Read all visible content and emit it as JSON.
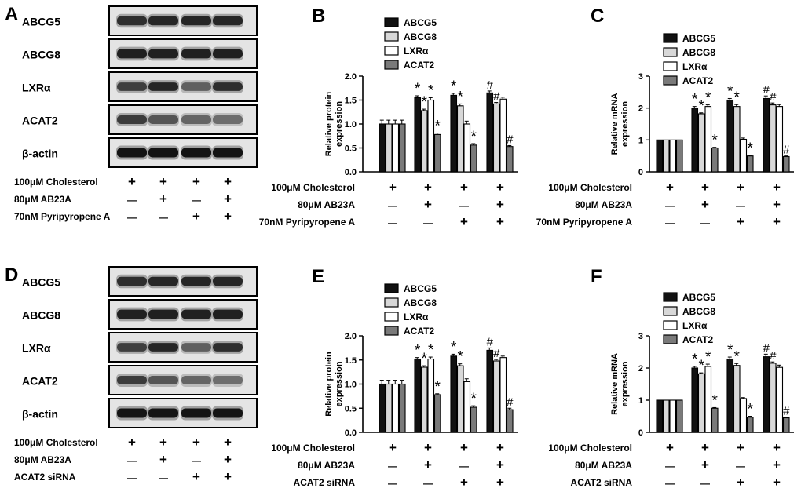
{
  "panels": {
    "A": {
      "letter": "A",
      "blot_labels": [
        "ABCG5",
        "ABCG8",
        "LXRα",
        "ACAT2",
        "β-actin"
      ],
      "conditions": [
        {
          "label": "100μM Cholesterol",
          "signs": [
            "+",
            "+",
            "+",
            "+"
          ]
        },
        {
          "label": "80μM AB23A",
          "signs": [
            "—",
            "+",
            "—",
            "+"
          ]
        },
        {
          "label": "70nM Pyripyropene A",
          "signs": [
            "—",
            "—",
            "+",
            "+"
          ]
        }
      ]
    },
    "D": {
      "letter": "D",
      "blot_labels": [
        "ABCG5",
        "ABCG8",
        "LXRα",
        "ACAT2",
        "β-actin"
      ],
      "conditions": [
        {
          "label": "100μM Cholesterol",
          "signs": [
            "+",
            "+",
            "+",
            "+"
          ]
        },
        {
          "label": "80μM AB23A",
          "signs": [
            "—",
            "+",
            "—",
            "+"
          ]
        },
        {
          "label": "ACAT2 siRNA",
          "signs": [
            "—",
            "—",
            "+",
            "+"
          ]
        }
      ]
    }
  },
  "chart_data": [
    {
      "panel": "B",
      "type": "bar",
      "ylabel": "Relative protein expression",
      "ylim": [
        0,
        2.0
      ],
      "yticks": [
        "0.0",
        "0.5",
        "1.0",
        "1.5",
        "2.0"
      ],
      "legend": [
        "ABCG5",
        "ABCG8",
        "LXRα",
        "ACAT2"
      ],
      "series": [
        {
          "name": "ABCG5",
          "values": [
            1.0,
            1.55,
            1.6,
            1.65
          ],
          "errors": [
            0.08,
            0.04,
            0.04,
            0.04
          ],
          "marks": [
            "",
            "*",
            "*",
            "#"
          ]
        },
        {
          "name": "ABCG8",
          "values": [
            1.0,
            1.28,
            1.38,
            1.42
          ],
          "errors": [
            0.08,
            0.03,
            0.04,
            0.03
          ],
          "marks": [
            "",
            "*",
            "*",
            "#"
          ]
        },
        {
          "name": "LXRα",
          "values": [
            1.0,
            1.5,
            1.0,
            1.52
          ],
          "errors": [
            0.08,
            0.05,
            0.06,
            0.04
          ],
          "marks": [
            "",
            "*",
            "",
            ""
          ]
        },
        {
          "name": "ACAT2",
          "values": [
            1.0,
            0.78,
            0.56,
            0.53
          ],
          "errors": [
            0.08,
            0.03,
            0.03,
            0.02
          ],
          "marks": [
            "",
            "*",
            "*",
            "#"
          ]
        }
      ],
      "conditions": [
        {
          "label": "100μM Cholesterol",
          "signs": [
            "+",
            "+",
            "+",
            "+"
          ]
        },
        {
          "label": "80μM AB23A",
          "signs": [
            "—",
            "+",
            "—",
            "+"
          ]
        },
        {
          "label": "70nM Pyripyropene A",
          "signs": [
            "—",
            "—",
            "+",
            "+"
          ]
        }
      ]
    },
    {
      "panel": "C",
      "type": "bar",
      "ylabel": "Relative mRNA expression",
      "ylim": [
        0,
        3
      ],
      "yticks": [
        "0",
        "1",
        "2",
        "3"
      ],
      "legend": [
        "ABCG5",
        "ABCG8",
        "LXRα",
        "ACAT2"
      ],
      "series": [
        {
          "name": "ABCG5",
          "values": [
            1.0,
            2.0,
            2.25,
            2.3
          ],
          "errors": [
            0.0,
            0.05,
            0.05,
            0.08
          ],
          "marks": [
            "",
            "*",
            "*",
            "#"
          ]
        },
        {
          "name": "ABCG8",
          "values": [
            1.0,
            1.82,
            2.05,
            2.1
          ],
          "errors": [
            0.0,
            0.03,
            0.06,
            0.06
          ],
          "marks": [
            "",
            "*",
            "*",
            "#"
          ]
        },
        {
          "name": "LXRα",
          "values": [
            1.0,
            2.05,
            1.02,
            2.05
          ],
          "errors": [
            0.0,
            0.05,
            0.04,
            0.06
          ],
          "marks": [
            "",
            "*",
            "",
            ""
          ]
        },
        {
          "name": "ACAT2",
          "values": [
            1.0,
            0.75,
            0.5,
            0.48
          ],
          "errors": [
            0.0,
            0.02,
            0.02,
            0.02
          ],
          "marks": [
            "",
            "*",
            "*",
            "#"
          ]
        }
      ],
      "conditions": [
        {
          "label": "100μM Cholesterol",
          "signs": [
            "+",
            "+",
            "+",
            "+"
          ]
        },
        {
          "label": "80μM AB23A",
          "signs": [
            "—",
            "+",
            "—",
            "+"
          ]
        },
        {
          "label": "70nM Pyripyropene A",
          "signs": [
            "—",
            "—",
            "+",
            "+"
          ]
        }
      ]
    },
    {
      "panel": "E",
      "type": "bar",
      "ylabel": "Relative protein expression",
      "ylim": [
        0,
        2.0
      ],
      "yticks": [
        "0.0",
        "0.5",
        "1.0",
        "1.5",
        "2.0"
      ],
      "legend": [
        "ABCG5",
        "ABCG8",
        "LXRα",
        "ACAT2"
      ],
      "series": [
        {
          "name": "ABCG5",
          "values": [
            1.0,
            1.52,
            1.58,
            1.7
          ],
          "errors": [
            0.08,
            0.03,
            0.04,
            0.05
          ],
          "marks": [
            "",
            "*",
            "*",
            "#"
          ]
        },
        {
          "name": "ABCG8",
          "values": [
            1.0,
            1.35,
            1.38,
            1.48
          ],
          "errors": [
            0.08,
            0.03,
            0.04,
            0.03
          ],
          "marks": [
            "",
            "*",
            "*",
            "#"
          ]
        },
        {
          "name": "LXRα",
          "values": [
            1.0,
            1.52,
            1.05,
            1.55
          ],
          "errors": [
            0.08,
            0.04,
            0.06,
            0.03
          ],
          "marks": [
            "",
            "*",
            "",
            ""
          ]
        },
        {
          "name": "ACAT2",
          "values": [
            1.0,
            0.78,
            0.52,
            0.47
          ],
          "errors": [
            0.08,
            0.02,
            0.03,
            0.03
          ],
          "marks": [
            "",
            "*",
            "*",
            "#"
          ]
        }
      ],
      "conditions": [
        {
          "label": "100μM Cholesterol",
          "signs": [
            "+",
            "+",
            "+",
            "+"
          ]
        },
        {
          "label": "80μM AB23A",
          "signs": [
            "—",
            "+",
            "—",
            "+"
          ]
        },
        {
          "label": "ACAT2 siRNA",
          "signs": [
            "—",
            "—",
            "+",
            "+"
          ]
        }
      ]
    },
    {
      "panel": "F",
      "type": "bar",
      "ylabel": "Relative mRNA expression",
      "ylim": [
        0,
        3
      ],
      "yticks": [
        "0",
        "1",
        "2",
        "3"
      ],
      "legend": [
        "ABCG5",
        "ABCG8",
        "LXRα",
        "ACAT2"
      ],
      "series": [
        {
          "name": "ABCG5",
          "values": [
            1.0,
            2.0,
            2.28,
            2.35
          ],
          "errors": [
            0.0,
            0.05,
            0.06,
            0.08
          ],
          "marks": [
            "",
            "*",
            "*",
            "#"
          ]
        },
        {
          "name": "ABCG8",
          "values": [
            1.0,
            1.82,
            2.08,
            2.15
          ],
          "errors": [
            0.0,
            0.03,
            0.06,
            0.04
          ],
          "marks": [
            "",
            "*",
            "*",
            "#"
          ]
        },
        {
          "name": "LXRα",
          "values": [
            1.0,
            2.05,
            1.05,
            2.02
          ],
          "errors": [
            0.0,
            0.07,
            0.03,
            0.07
          ],
          "marks": [
            "",
            "*",
            "",
            ""
          ]
        },
        {
          "name": "ACAT2",
          "values": [
            1.0,
            0.75,
            0.47,
            0.45
          ],
          "errors": [
            0.0,
            0.02,
            0.03,
            0.02
          ],
          "marks": [
            "",
            "*",
            "*",
            "#"
          ]
        }
      ],
      "conditions": [
        {
          "label": "100μM Cholesterol",
          "signs": [
            "+",
            "+",
            "+",
            "+"
          ]
        },
        {
          "label": "80μM AB23A",
          "signs": [
            "—",
            "+",
            "—",
            "+"
          ]
        },
        {
          "label": "ACAT2 siRNA",
          "signs": [
            "—",
            "—",
            "+",
            "+"
          ]
        }
      ]
    }
  ],
  "colors": {
    "ABCG5": "#111111",
    "ABCG8": "#d8d8d8",
    "LXRα": "#ffffff",
    "ACAT2": "#7a7a7a",
    "axis": "#000000"
  }
}
